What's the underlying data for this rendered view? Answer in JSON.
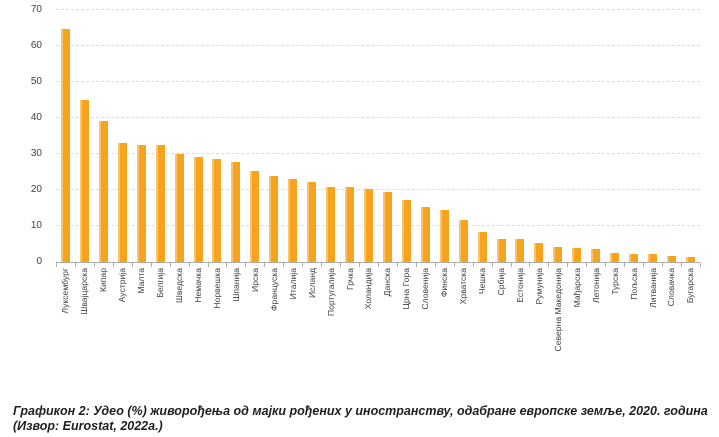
{
  "chart_data": {
    "type": "bar",
    "title": "",
    "xlabel": "",
    "ylabel": "",
    "ylim": [
      0,
      70
    ],
    "yticks": [
      0,
      10,
      20,
      30,
      40,
      50,
      60,
      70
    ],
    "grid": "horizontal-dashed",
    "legend": "none",
    "bar_color": "#f6a41f",
    "bar_edge_color": "#fbc468",
    "categories": [
      "Луксембург",
      "Швајцарска",
      "Кипар",
      "Аустрија",
      "Малта",
      "Белгија",
      "Шведска",
      "Немачка",
      "Норвешка",
      "Шпанија",
      "Ирска",
      "Француска",
      "Италија",
      "Исланд",
      "Португалија",
      "Грчка",
      "Холандија",
      "Данска",
      "Црна Гора",
      "Словенија",
      "Финска",
      "Хрватска",
      "Чешка",
      "Србија",
      "Естонија",
      "Румунија",
      "Северна Македонија",
      "Мађарска",
      "Летонија",
      "Турска",
      "Пољска",
      "Литванија",
      "Словачка",
      "Бугарска"
    ],
    "values": [
      64.6,
      45.0,
      39.3,
      33.1,
      32.5,
      32.4,
      29.9,
      29.3,
      28.5,
      27.8,
      25.4,
      23.9,
      23.0,
      22.1,
      20.8,
      20.7,
      20.2,
      19.4,
      17.1,
      15.2,
      14.5,
      11.7,
      8.3,
      6.5,
      6.4,
      5.2,
      4.1,
      4.0,
      3.5,
      2.5,
      2.3,
      2.3,
      1.7,
      1.5
    ]
  },
  "caption": {
    "line1": "Графикон 2: Удео (%) живорођења од мајки рођених у иностранству, одабране европске земље, 2020. година",
    "line2": "(Извор: Eurostat, 2022а.)"
  },
  "colors": {
    "bar": "#f6a41f",
    "gridline": "#dcdcdc",
    "axis": "#adadad",
    "tick_text": "#3f3f3f",
    "caption_text": "#1f1f1f",
    "background": "#ffffff"
  }
}
